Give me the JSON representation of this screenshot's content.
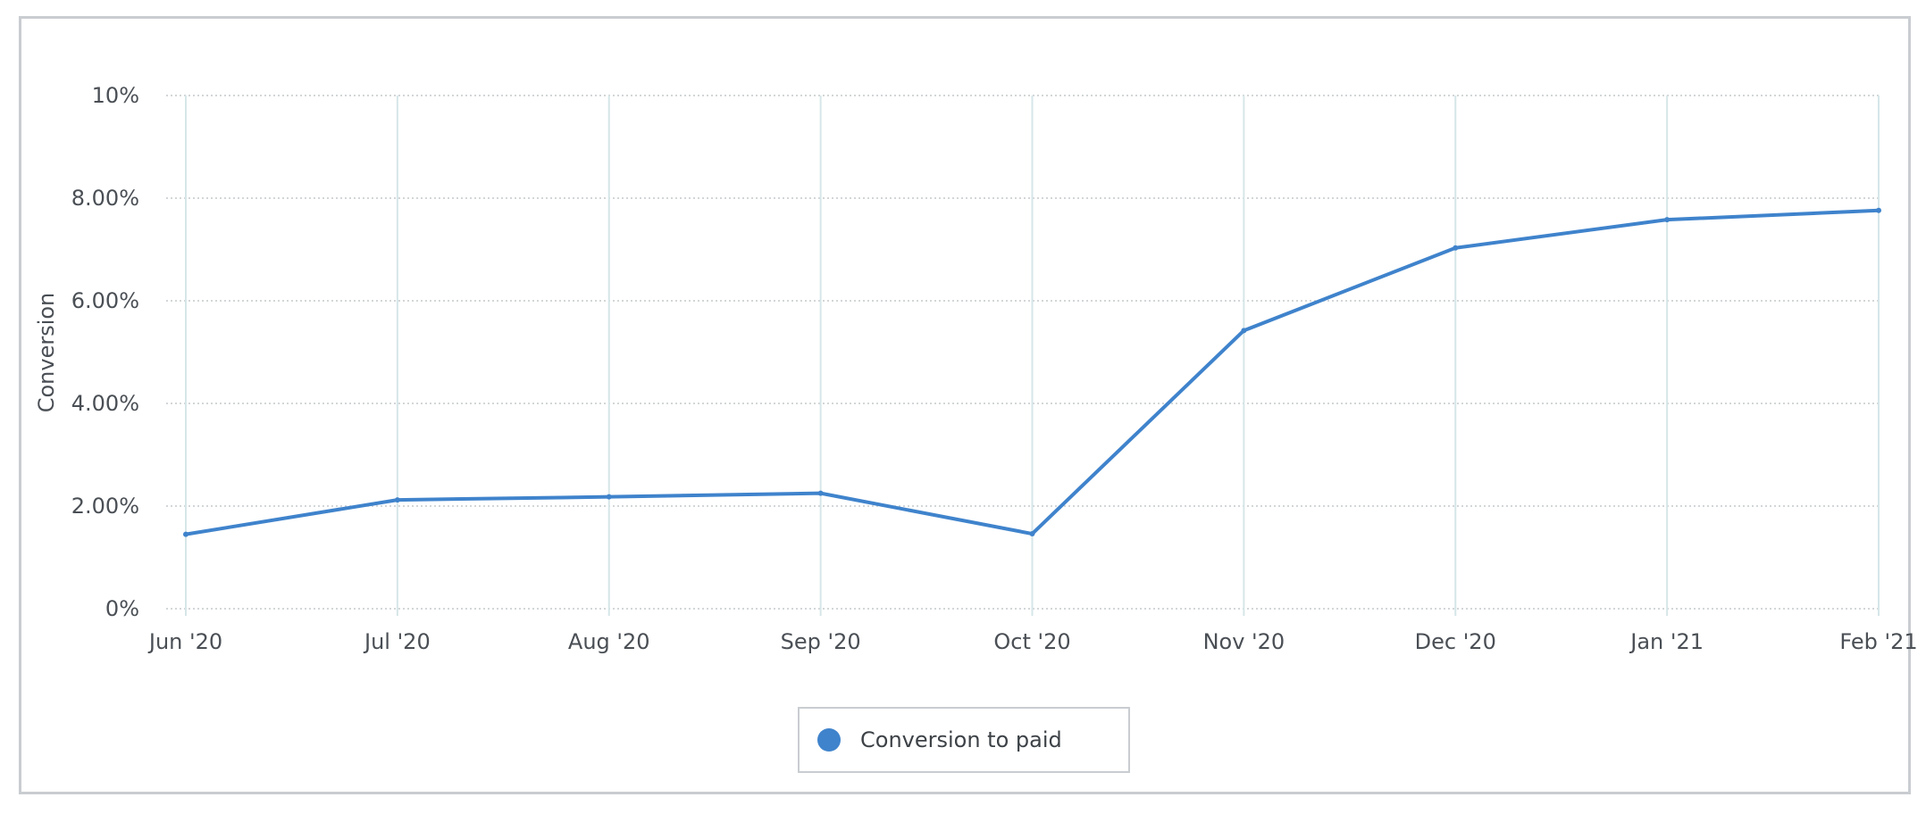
{
  "chart_data": {
    "type": "line",
    "categories": [
      "Jun '20",
      "Jul '20",
      "Aug '20",
      "Sep '20",
      "Oct '20",
      "Nov '20",
      "Dec '20",
      "Jan '21",
      "Feb '21"
    ],
    "series": [
      {
        "name": "Conversion to paid",
        "color": "#3f83cc",
        "values": [
          1.45,
          2.12,
          2.18,
          2.25,
          1.46,
          5.42,
          7.03,
          7.58,
          7.76
        ]
      }
    ],
    "title": "",
    "xlabel": "",
    "ylabel": "Conversion",
    "ylim": [
      0,
      10
    ],
    "yticks": [
      {
        "value": 0,
        "label": "0%"
      },
      {
        "value": 2,
        "label": "2.00%"
      },
      {
        "value": 4,
        "label": "4.00%"
      },
      {
        "value": 6,
        "label": "6.00%"
      },
      {
        "value": 8,
        "label": "8.00%"
      },
      {
        "value": 10,
        "label": "10%"
      }
    ],
    "grid": true,
    "legend_position": "bottom-center"
  },
  "colors": {
    "line": "#3f83cc",
    "vertical_grid": "#d6e6e8",
    "horizontal_grid": "#c3c8cc",
    "frame": "#c9cdd1"
  }
}
